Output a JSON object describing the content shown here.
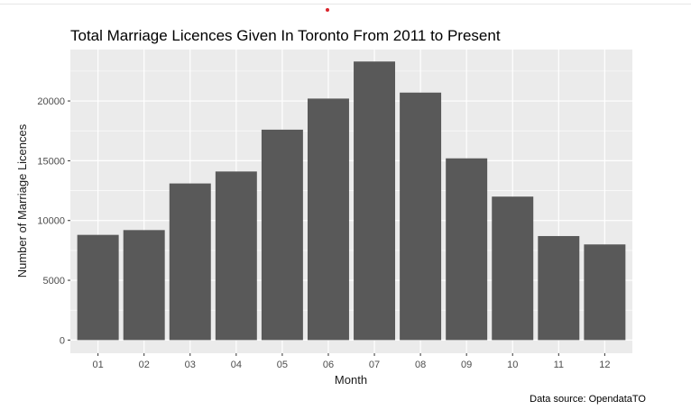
{
  "chart_data": {
    "type": "bar",
    "title": "Total Marriage Licences Given In Toronto From 2011 to Present",
    "xlabel": "Month",
    "ylabel": "Number of Marriage Licences",
    "caption": "Data source: OpendataTO",
    "categories": [
      "01",
      "02",
      "03",
      "04",
      "05",
      "06",
      "07",
      "08",
      "09",
      "10",
      "11",
      "12"
    ],
    "values": [
      8800,
      9200,
      13100,
      14100,
      17600,
      20200,
      23300,
      20700,
      15200,
      12000,
      8700,
      8000
    ],
    "ylim": [
      -1100,
      24300
    ],
    "yticks": [
      0,
      5000,
      10000,
      15000,
      20000
    ],
    "grid": true,
    "bar_color": "#595959",
    "panel_color": "#ebebeb",
    "grid_color": "#ffffff"
  }
}
